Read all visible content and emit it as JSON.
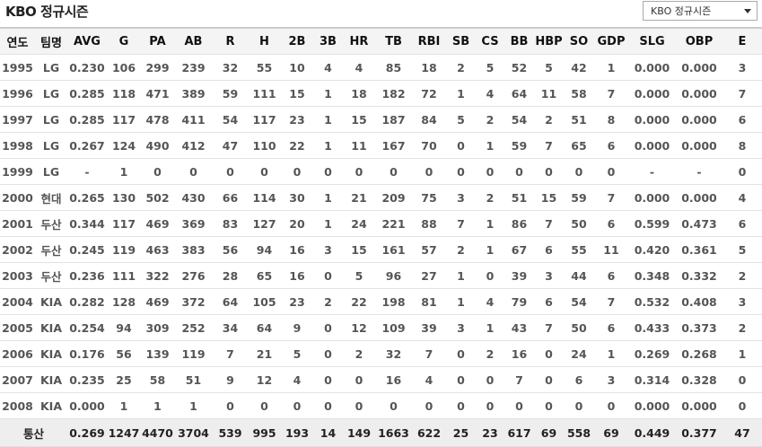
{
  "header": {
    "title": "KBO 정규시즌",
    "select": "KBO 정규시즌"
  },
  "table": {
    "columns": [
      "연도",
      "팀명",
      "AVG",
      "G",
      "PA",
      "AB",
      "R",
      "H",
      "2B",
      "3B",
      "HR",
      "TB",
      "RBI",
      "SB",
      "CS",
      "BB",
      "HBP",
      "SO",
      "GDP",
      "SLG",
      "OBP",
      "E"
    ],
    "rows": [
      [
        "1995",
        "LG",
        "0.230",
        "106",
        "299",
        "239",
        "32",
        "55",
        "10",
        "4",
        "4",
        "85",
        "18",
        "2",
        "5",
        "52",
        "5",
        "42",
        "1",
        "0.000",
        "0.000",
        "3"
      ],
      [
        "1996",
        "LG",
        "0.285",
        "118",
        "471",
        "389",
        "59",
        "111",
        "15",
        "1",
        "18",
        "182",
        "72",
        "1",
        "4",
        "64",
        "11",
        "58",
        "7",
        "0.000",
        "0.000",
        "7"
      ],
      [
        "1997",
        "LG",
        "0.285",
        "117",
        "478",
        "411",
        "54",
        "117",
        "23",
        "1",
        "15",
        "187",
        "84",
        "5",
        "2",
        "54",
        "2",
        "51",
        "8",
        "0.000",
        "0.000",
        "6"
      ],
      [
        "1998",
        "LG",
        "0.267",
        "124",
        "490",
        "412",
        "47",
        "110",
        "22",
        "1",
        "11",
        "167",
        "70",
        "0",
        "1",
        "59",
        "7",
        "65",
        "6",
        "0.000",
        "0.000",
        "8"
      ],
      [
        "1999",
        "LG",
        "-",
        "1",
        "0",
        "0",
        "0",
        "0",
        "0",
        "0",
        "0",
        "0",
        "0",
        "0",
        "0",
        "0",
        "0",
        "0",
        "0",
        "-",
        "-",
        "0"
      ],
      [
        "2000",
        "현대",
        "0.265",
        "130",
        "502",
        "430",
        "66",
        "114",
        "30",
        "1",
        "21",
        "209",
        "75",
        "3",
        "2",
        "51",
        "15",
        "59",
        "7",
        "0.000",
        "0.000",
        "4"
      ],
      [
        "2001",
        "두산",
        "0.344",
        "117",
        "469",
        "369",
        "83",
        "127",
        "20",
        "1",
        "24",
        "221",
        "88",
        "7",
        "1",
        "86",
        "7",
        "50",
        "6",
        "0.599",
        "0.473",
        "6"
      ],
      [
        "2002",
        "두산",
        "0.245",
        "119",
        "463",
        "383",
        "56",
        "94",
        "16",
        "3",
        "15",
        "161",
        "57",
        "2",
        "1",
        "67",
        "6",
        "55",
        "11",
        "0.420",
        "0.361",
        "5"
      ],
      [
        "2003",
        "두산",
        "0.236",
        "111",
        "322",
        "276",
        "28",
        "65",
        "16",
        "0",
        "5",
        "96",
        "27",
        "1",
        "0",
        "39",
        "3",
        "44",
        "6",
        "0.348",
        "0.332",
        "2"
      ],
      [
        "2004",
        "KIA",
        "0.282",
        "128",
        "469",
        "372",
        "64",
        "105",
        "23",
        "2",
        "22",
        "198",
        "81",
        "1",
        "4",
        "79",
        "6",
        "54",
        "7",
        "0.532",
        "0.408",
        "3"
      ],
      [
        "2005",
        "KIA",
        "0.254",
        "94",
        "309",
        "252",
        "34",
        "64",
        "9",
        "0",
        "12",
        "109",
        "39",
        "3",
        "1",
        "43",
        "7",
        "50",
        "6",
        "0.433",
        "0.373",
        "2"
      ],
      [
        "2006",
        "KIA",
        "0.176",
        "56",
        "139",
        "119",
        "7",
        "21",
        "5",
        "0",
        "2",
        "32",
        "7",
        "0",
        "2",
        "16",
        "0",
        "24",
        "1",
        "0.269",
        "0.268",
        "1"
      ],
      [
        "2007",
        "KIA",
        "0.235",
        "25",
        "58",
        "51",
        "9",
        "12",
        "4",
        "0",
        "0",
        "16",
        "4",
        "0",
        "0",
        "7",
        "0",
        "6",
        "3",
        "0.314",
        "0.328",
        "0"
      ],
      [
        "2008",
        "KIA",
        "0.000",
        "1",
        "1",
        "1",
        "0",
        "0",
        "0",
        "0",
        "0",
        "0",
        "0",
        "0",
        "0",
        "0",
        "0",
        "0",
        "0",
        "0.000",
        "0.000",
        "0"
      ]
    ],
    "total": {
      "label": "통산",
      "values": [
        "0.269",
        "1247",
        "4470",
        "3704",
        "539",
        "995",
        "193",
        "14",
        "149",
        "1663",
        "622",
        "25",
        "23",
        "617",
        "69",
        "558",
        "69",
        "0.449",
        "0.377",
        "47"
      ]
    }
  }
}
